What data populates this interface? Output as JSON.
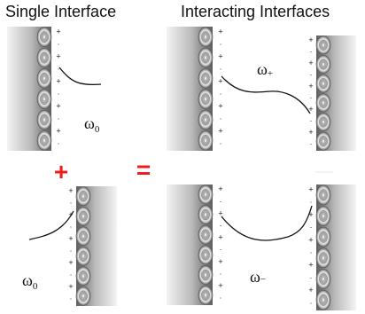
{
  "titles": {
    "single": "Single Interface",
    "interacting": "Interacting Interfaces"
  },
  "labels": {
    "omega_symbol": "ω",
    "omega_zero_sub": "0",
    "omega_plus_sub": "+",
    "omega_minus_sub": "−",
    "plus_operator": "+",
    "equals_operator": "="
  },
  "charges": {
    "positive": "+",
    "negative": "·"
  },
  "colors": {
    "operator": "#ee1c1c",
    "curve": "#111111"
  }
}
